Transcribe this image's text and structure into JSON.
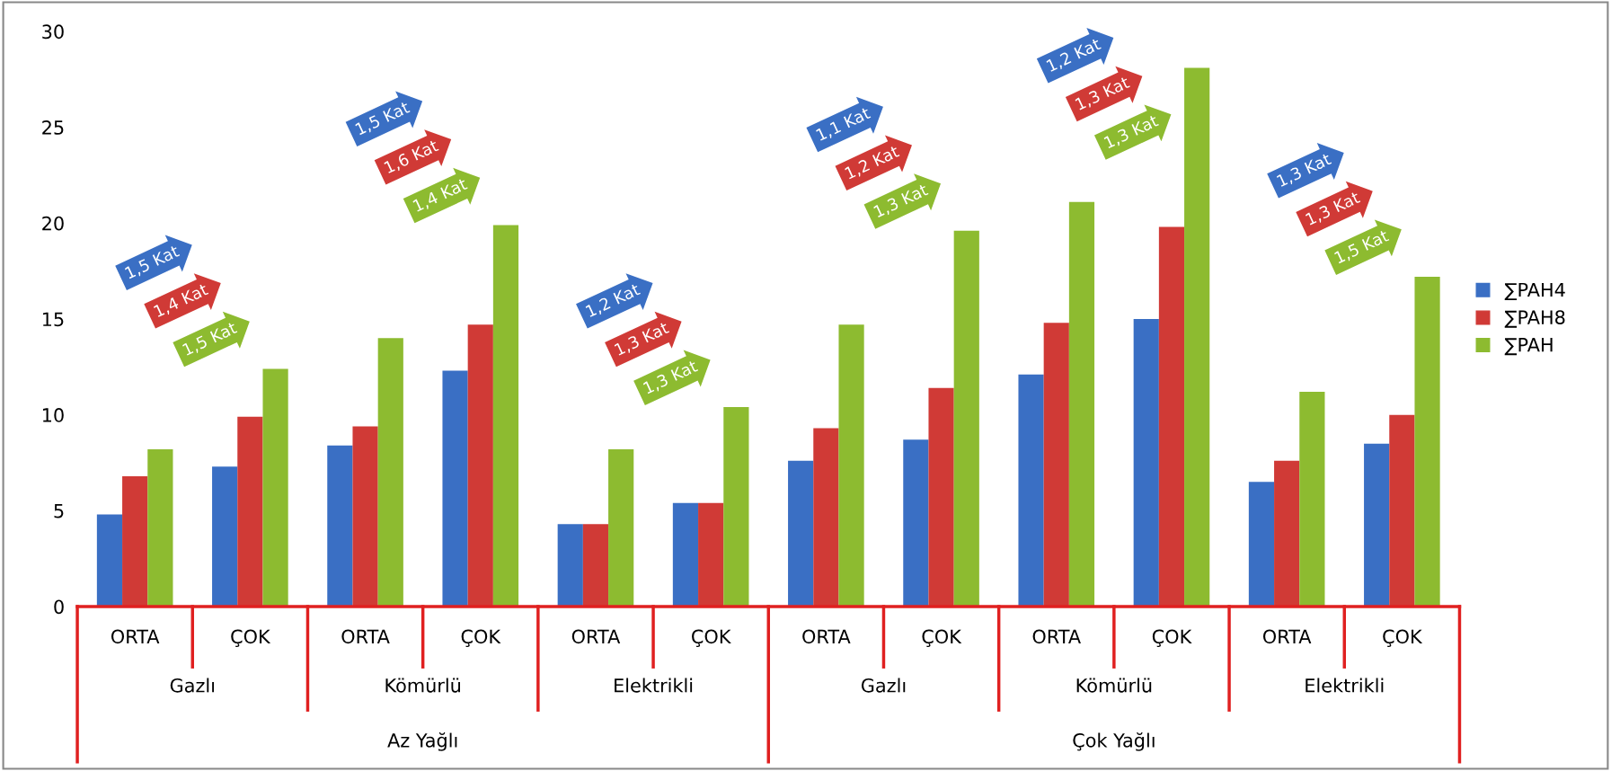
{
  "chart_data": {
    "type": "bar",
    "categories": [
      "ORTA",
      "ÇOK",
      "ORTA",
      "ÇOK",
      "ORTA",
      "ÇOK",
      "ORTA",
      "ÇOK",
      "ORTA",
      "ÇOK",
      "ORTA",
      "ÇOK"
    ],
    "series": [
      {
        "name": "∑PAH4",
        "color": "#3a6fc4",
        "values": [
          4.8,
          7.3,
          8.4,
          12.3,
          4.3,
          5.4,
          7.6,
          8.7,
          12.1,
          15.0,
          6.5,
          8.5
        ]
      },
      {
        "name": "∑PAH8",
        "color": "#d03a36",
        "values": [
          6.8,
          9.9,
          9.4,
          14.7,
          4.3,
          5.4,
          9.3,
          11.4,
          14.8,
          19.8,
          7.6,
          10.0
        ]
      },
      {
        "name": "∑PAH",
        "color": "#8dbb30",
        "values": [
          8.2,
          12.4,
          14.0,
          19.9,
          8.2,
          10.4,
          14.7,
          19.6,
          21.1,
          28.1,
          11.2,
          17.2
        ]
      }
    ],
    "ylim": [
      0,
      30
    ],
    "yticks": [
      0,
      5,
      10,
      15,
      20,
      25,
      30
    ],
    "grid": false,
    "legend": "right",
    "annotations": [
      "1,5 Kat",
      "1,4 Kat",
      "1,5 Kat",
      "1,5 Kat",
      "1,6 Kat",
      "1,4 Kat",
      "1,2 Kat",
      "1,3 Kat",
      "1,3 Kat",
      "1,1 Kat",
      "1,2 Kat",
      "1,3 Kat",
      "1,2 Kat",
      "1,3 Kat",
      "1,3 Kat",
      "1,3 Kat",
      "1,3 Kat",
      "1,5 Kat",
      "Gazlı",
      "Kömürlü",
      "Elektrikli",
      "Gazlı",
      "Kömürlü",
      "Elektrikli",
      "Az Yağlı",
      "Çok Yağlı"
    ]
  }
}
